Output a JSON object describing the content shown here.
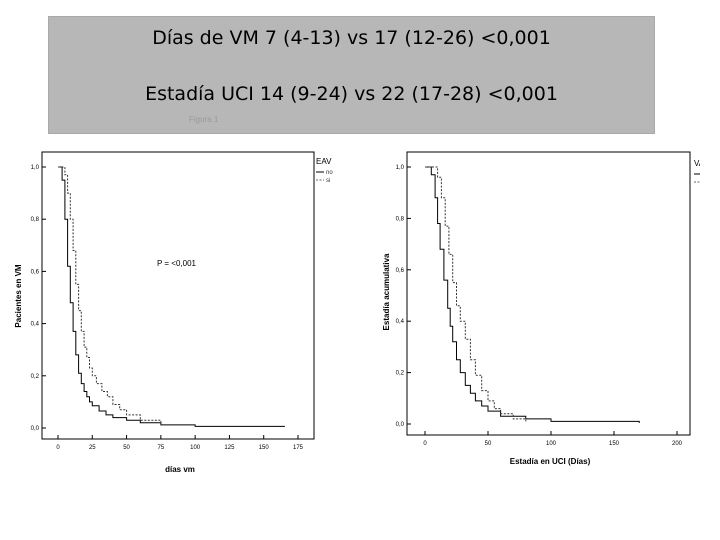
{
  "banner": {
    "line1": "Días de VM  7 (4-13) vs 17 (12-26)  <0,001",
    "line2": "Estadía UCI  14 (9-24) vs 22 (17-28)  <0,001",
    "caption": "Figura 1"
  },
  "chart_data": [
    {
      "type": "line",
      "ylabel": "Pacientes en VM",
      "xlabel": "días vm",
      "xlim": [
        0,
        175
      ],
      "ylim": [
        0,
        1
      ],
      "x_ticks": [
        "0",
        "25",
        "50",
        "75",
        "100",
        "125",
        "150",
        "175"
      ],
      "y_ticks": [
        "0,0",
        "0,2",
        "0,4",
        "0,6",
        "0,8",
        "1,0"
      ],
      "legend": {
        "title": "EAV",
        "entries": [
          "no",
          "si"
        ],
        "position": "top-right"
      },
      "annotation": "P = <0,001",
      "series": [
        {
          "name": "no",
          "style": "solid",
          "x": [
            0,
            3,
            5,
            7,
            9,
            11,
            13,
            15,
            17,
            19,
            21,
            23,
            25,
            30,
            35,
            40,
            50,
            60,
            75,
            100,
            165
          ],
          "y": [
            1.0,
            0.95,
            0.8,
            0.62,
            0.48,
            0.37,
            0.28,
            0.21,
            0.17,
            0.14,
            0.12,
            0.1,
            0.085,
            0.065,
            0.05,
            0.04,
            0.03,
            0.02,
            0.012,
            0.006,
            0.004
          ]
        },
        {
          "name": "si",
          "style": "dashed",
          "x": [
            0,
            5,
            7,
            9,
            11,
            13,
            15,
            17,
            19,
            21,
            23,
            25,
            28,
            32,
            36,
            40,
            45,
            50,
            60,
            75
          ],
          "y": [
            1.0,
            0.97,
            0.9,
            0.8,
            0.68,
            0.55,
            0.45,
            0.37,
            0.31,
            0.27,
            0.23,
            0.2,
            0.17,
            0.14,
            0.12,
            0.09,
            0.07,
            0.05,
            0.03,
            0.01
          ]
        }
      ]
    },
    {
      "type": "line",
      "ylabel": "Estadía acumulativa",
      "xlabel": "Estadía en UCI (Días)",
      "xlim": [
        0,
        200
      ],
      "ylim": [
        0,
        1
      ],
      "x_ticks": [
        "0",
        "50",
        "100",
        "150",
        "200"
      ],
      "y_ticks": [
        "0,0",
        "0,2",
        "0,4",
        "0,6",
        "0,8",
        "1,0"
      ],
      "legend": {
        "title": "VAC",
        "entries": [
          "no",
          "si"
        ],
        "position": "top-right"
      },
      "series": [
        {
          "name": "no",
          "style": "solid",
          "x": [
            0,
            5,
            8,
            10,
            12,
            15,
            18,
            20,
            22,
            25,
            28,
            32,
            36,
            40,
            45,
            50,
            60,
            80,
            100,
            170
          ],
          "y": [
            1.0,
            0.97,
            0.88,
            0.78,
            0.68,
            0.56,
            0.45,
            0.38,
            0.32,
            0.25,
            0.2,
            0.15,
            0.12,
            0.09,
            0.07,
            0.05,
            0.03,
            0.02,
            0.01,
            0.004
          ]
        },
        {
          "name": "si",
          "style": "dashed",
          "x": [
            0,
            10,
            13,
            16,
            19,
            22,
            25,
            28,
            32,
            36,
            40,
            45,
            50,
            55,
            60,
            70,
            80
          ],
          "y": [
            1.0,
            0.96,
            0.88,
            0.77,
            0.66,
            0.55,
            0.46,
            0.4,
            0.33,
            0.25,
            0.19,
            0.13,
            0.09,
            0.06,
            0.04,
            0.02,
            0.01
          ]
        }
      ]
    }
  ]
}
